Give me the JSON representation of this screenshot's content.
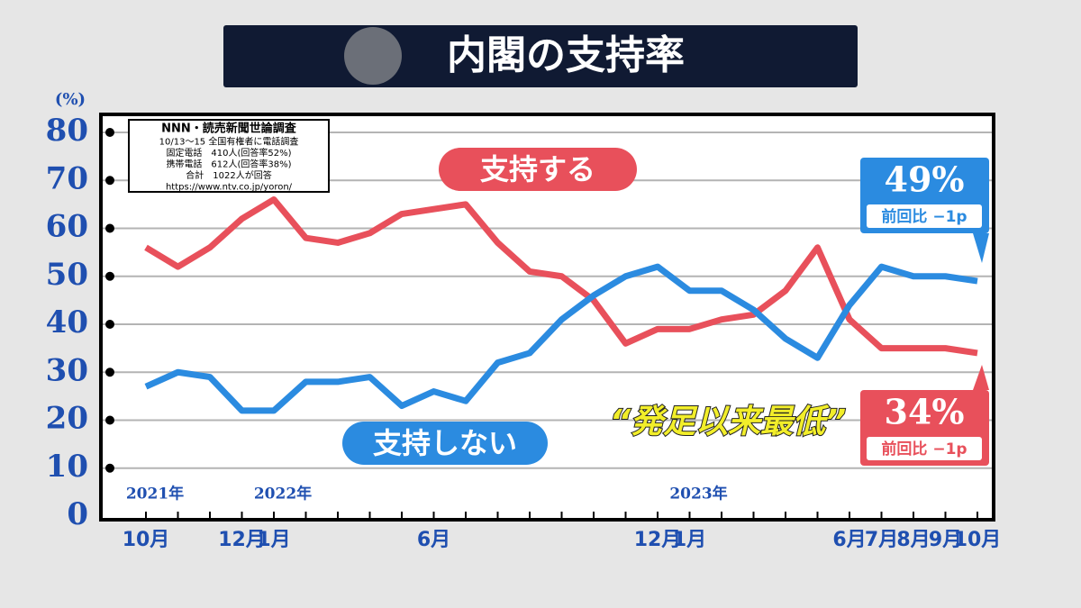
{
  "chart_data": {
    "type": "line",
    "title": "内閣の支持率",
    "y_unit": "(%)",
    "source": [
      "NNN・読売新聞世論調査",
      "10/13～15 全国有権者に電話調査",
      "固定電話　410人(回答率52%)",
      "携帯電話　612人(回答率38%)",
      "合計　1022人が回答",
      "https://www.ntv.co.jp/yoron/"
    ],
    "categories": [
      "10月",
      null,
      null,
      "12月",
      "1月",
      null,
      null,
      null,
      null,
      "6月",
      null,
      null,
      null,
      null,
      null,
      null,
      "12月",
      "1月",
      null,
      null,
      null,
      null,
      "6月",
      "7月",
      "8月",
      "9月",
      "10月"
    ],
    "year_labels": [
      "2021年",
      null,
      null,
      null,
      "2022年",
      null,
      null,
      null,
      null,
      null,
      null,
      null,
      null,
      null,
      null,
      null,
      null,
      "2023年",
      null,
      null,
      null,
      null,
      null,
      null,
      null,
      null,
      null
    ],
    "ylim": [
      0,
      80
    ],
    "yticks": [
      0,
      10,
      20,
      30,
      40,
      50,
      60,
      70,
      80
    ],
    "grid": true,
    "series": [
      {
        "name": "支持する",
        "color": "#e8505b",
        "values": [
          56,
          52,
          56,
          62,
          66,
          58,
          57,
          59,
          63,
          64,
          65,
          57,
          51,
          50,
          45,
          36,
          39,
          39,
          41,
          42,
          47,
          56,
          41,
          35,
          35,
          35,
          34
        ],
        "value_labels": [
          null,
          null,
          null,
          null,
          null,
          null,
          null,
          null,
          null,
          null,
          null,
          null,
          null,
          null,
          null,
          null,
          null,
          null,
          null,
          null,
          null,
          null,
          null,
          null,
          null,
          null,
          "34%"
        ],
        "change_label": "前回比 −1p"
      },
      {
        "name": "支持しない",
        "color": "#2b8be0",
        "values": [
          27,
          30,
          29,
          22,
          22,
          28,
          28,
          29,
          23,
          26,
          24,
          32,
          34,
          41,
          46,
          50,
          52,
          47,
          47,
          43,
          37,
          33,
          44,
          52,
          50,
          50,
          49
        ],
        "value_labels": [
          null,
          null,
          null,
          null,
          null,
          null,
          null,
          null,
          null,
          null,
          null,
          null,
          null,
          null,
          null,
          null,
          null,
          null,
          null,
          null,
          null,
          null,
          null,
          null,
          null,
          null,
          "49%"
        ],
        "change_label": "前回比 −1p"
      }
    ],
    "annotation": "“発足以来最低”"
  }
}
